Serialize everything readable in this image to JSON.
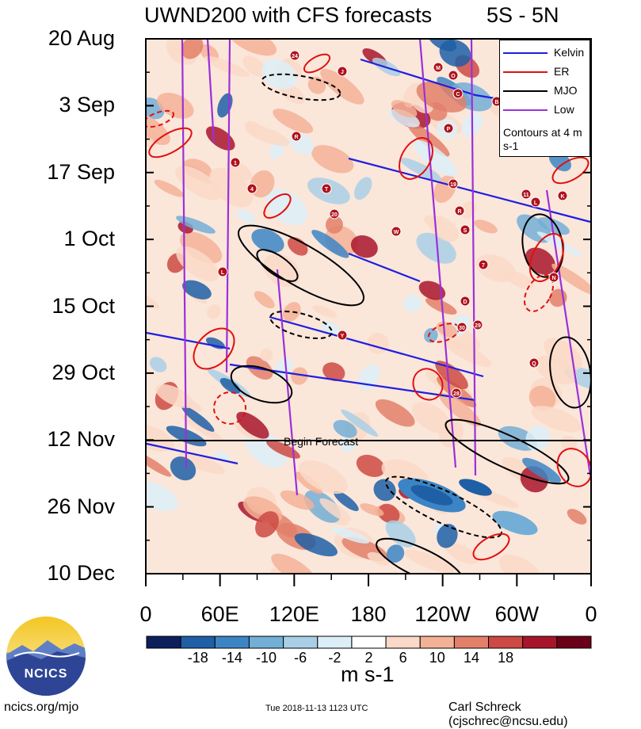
{
  "header": {
    "title": "UWND200 with CFS forecasts",
    "region": "5S - 5N"
  },
  "chart_data": {
    "type": "heatmap",
    "title": "UWND200 with CFS forecasts",
    "subtitle": "5S - 5N",
    "y_tick_labels": [
      "20 Aug",
      "3 Sep",
      "17 Sep",
      "1 Oct",
      "15 Oct",
      "29 Oct",
      "12 Nov",
      "26 Nov",
      "10 Dec"
    ],
    "y_tick_dates": [
      "2018-08-20",
      "2018-09-03",
      "2018-09-17",
      "2018-10-01",
      "2018-10-15",
      "2018-10-29",
      "2018-11-12",
      "2018-11-26",
      "2018-12-10"
    ],
    "x_tick_labels": [
      "0",
      "60E",
      "120E",
      "180",
      "120W",
      "60W",
      "0"
    ],
    "x_tick_longitudes": [
      0,
      60,
      120,
      180,
      240,
      300,
      360
    ],
    "xlim": [
      0,
      360
    ],
    "ylim": [
      "2018-08-20",
      "2018-12-10"
    ],
    "forecast_start": "2018-11-12",
    "forecast_label": "Begin Forecast",
    "legend": {
      "position": "top-right",
      "entries": [
        {
          "name": "Kelvin",
          "color": "#1f1fe0"
        },
        {
          "name": "ER",
          "color": "#e01010"
        },
        {
          "name": "MJO",
          "color": "#000000"
        },
        {
          "name": "Low",
          "color": "#9b30d9"
        }
      ],
      "note": "Contours at 4 m s-1"
    },
    "colorbar": {
      "units": "m s-1",
      "tick_labels": [
        "-18",
        "-14",
        "-10",
        "-6",
        "-2",
        "2",
        "6",
        "10",
        "14",
        "18"
      ],
      "colors": [
        "#0d1f5c",
        "#1f5fa6",
        "#3c85c4",
        "#73aed6",
        "#a9cfe6",
        "#dceef7",
        "#ffffff",
        "#fad9c8",
        "#f3b196",
        "#e2806a",
        "#cc4a43",
        "#a8152b",
        "#6b0019"
      ]
    },
    "storm_labels": [
      "24",
      "J",
      "M",
      "O",
      "C",
      "B",
      "R",
      "P",
      "1",
      "4",
      "T",
      "19",
      "11",
      "K",
      "L",
      "20",
      "W",
      "R",
      "S",
      "N",
      "Y",
      "D",
      "30",
      "29",
      "7",
      "L",
      "Q",
      "28"
    ]
  },
  "logo": {
    "text": "NCICS"
  },
  "footer": {
    "left": "ncics.org/mjo",
    "timestamp": "Tue 2018-11-13 1123 UTC",
    "author": "Carl Schreck (cjschrec@ncsu.edu)"
  }
}
